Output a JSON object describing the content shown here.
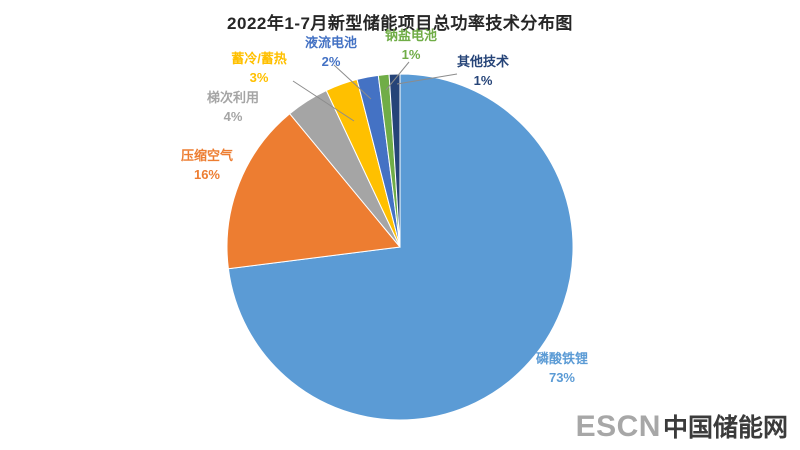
{
  "chart_data": {
    "type": "pie",
    "title": "2022年1-7月新型储能项目总功率技术分布图",
    "start_angle_deg": 0,
    "direction": "clockwise",
    "legend_position": "none",
    "background": "#ffffff",
    "slices": [
      {
        "label": "磷酸铁锂",
        "value": 73,
        "pct_label": "73%",
        "color": "#5B9BD5"
      },
      {
        "label": "压缩空气",
        "value": 16,
        "pct_label": "16%",
        "color": "#ED7D31"
      },
      {
        "label": "梯次利用",
        "value": 4,
        "pct_label": "4%",
        "color": "#A5A5A5"
      },
      {
        "label": "蓄冷/蓄热",
        "value": 3,
        "pct_label": "3%",
        "color": "#FFC000"
      },
      {
        "label": "液流电池",
        "value": 2,
        "pct_label": "2%",
        "color": "#4472C4"
      },
      {
        "label": "钠盐电池",
        "value": 1,
        "pct_label": "1%",
        "color": "#70AD47"
      },
      {
        "label": "其他技术",
        "value": 1,
        "pct_label": "1%",
        "color": "#264478"
      }
    ]
  },
  "watermark": {
    "escn": "ESCN",
    "site": "中国储能网"
  }
}
